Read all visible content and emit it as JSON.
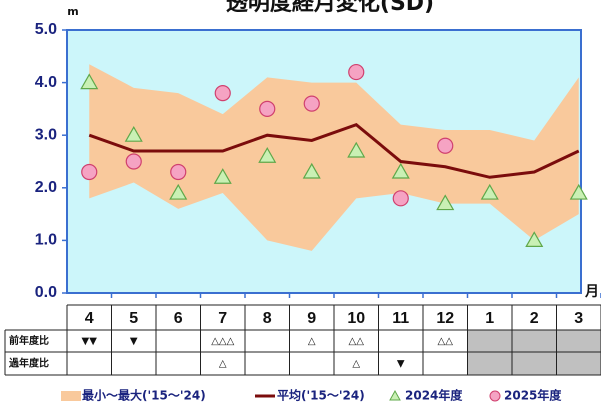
{
  "chart_data": {
    "type": "line",
    "title": "透明度経月変化(SD)",
    "y_unit": "m",
    "x_unit": "月",
    "categories": [
      "4",
      "5",
      "6",
      "7",
      "8",
      "9",
      "10",
      "11",
      "12",
      "1",
      "2",
      "3"
    ],
    "ylim": [
      0,
      5
    ],
    "yticks": [
      {
        "value": 0,
        "label": "0.0"
      },
      {
        "value": 1,
        "label": "1.0"
      },
      {
        "value": 2,
        "label": "2.0"
      },
      {
        "value": 3,
        "label": "3.0"
      },
      {
        "value": 4,
        "label": "4.0"
      },
      {
        "value": 5,
        "label": "5.0"
      }
    ],
    "range": {
      "name": "最小～最大('15～'24)",
      "color": "#f9c99c",
      "low": [
        1.8,
        2.1,
        1.6,
        1.9,
        1.0,
        0.8,
        1.8,
        1.9,
        1.7,
        1.7,
        1.0,
        1.5
      ],
      "high": [
        4.35,
        3.9,
        3.8,
        3.4,
        4.1,
        4.0,
        4.0,
        3.2,
        3.1,
        3.1,
        2.9,
        4.1
      ]
    },
    "series": [
      {
        "name": "平均('15～'24)",
        "color": "#7b0c0c",
        "marker": "line",
        "values": [
          3.0,
          2.7,
          2.7,
          2.7,
          3.0,
          2.9,
          3.2,
          2.5,
          2.4,
          2.2,
          2.3,
          2.7
        ]
      },
      {
        "name": "2024年度",
        "color": "#5fa84a",
        "fill": "#c9f0b4",
        "marker": "triangle",
        "values": [
          4.0,
          3.0,
          1.9,
          2.2,
          2.6,
          2.3,
          2.7,
          2.3,
          1.7,
          1.9,
          1.0,
          1.9
        ]
      },
      {
        "name": "2025年度",
        "color": "#d0406e",
        "fill": "#f5a3c3",
        "marker": "circle",
        "values": [
          2.3,
          2.5,
          2.3,
          3.8,
          3.5,
          3.6,
          4.2,
          1.8,
          2.8,
          null,
          null,
          null
        ]
      }
    ]
  },
  "table": {
    "row_labels": [
      "前年度比",
      "過年度比"
    ],
    "rows": [
      [
        "▼▼",
        "▼",
        null,
        "△△△",
        null,
        "△",
        "△△",
        null,
        "△△",
        null,
        null,
        null
      ],
      [
        null,
        null,
        null,
        "△",
        null,
        null,
        "△",
        "▼",
        null,
        null,
        null,
        null
      ]
    ]
  }
}
